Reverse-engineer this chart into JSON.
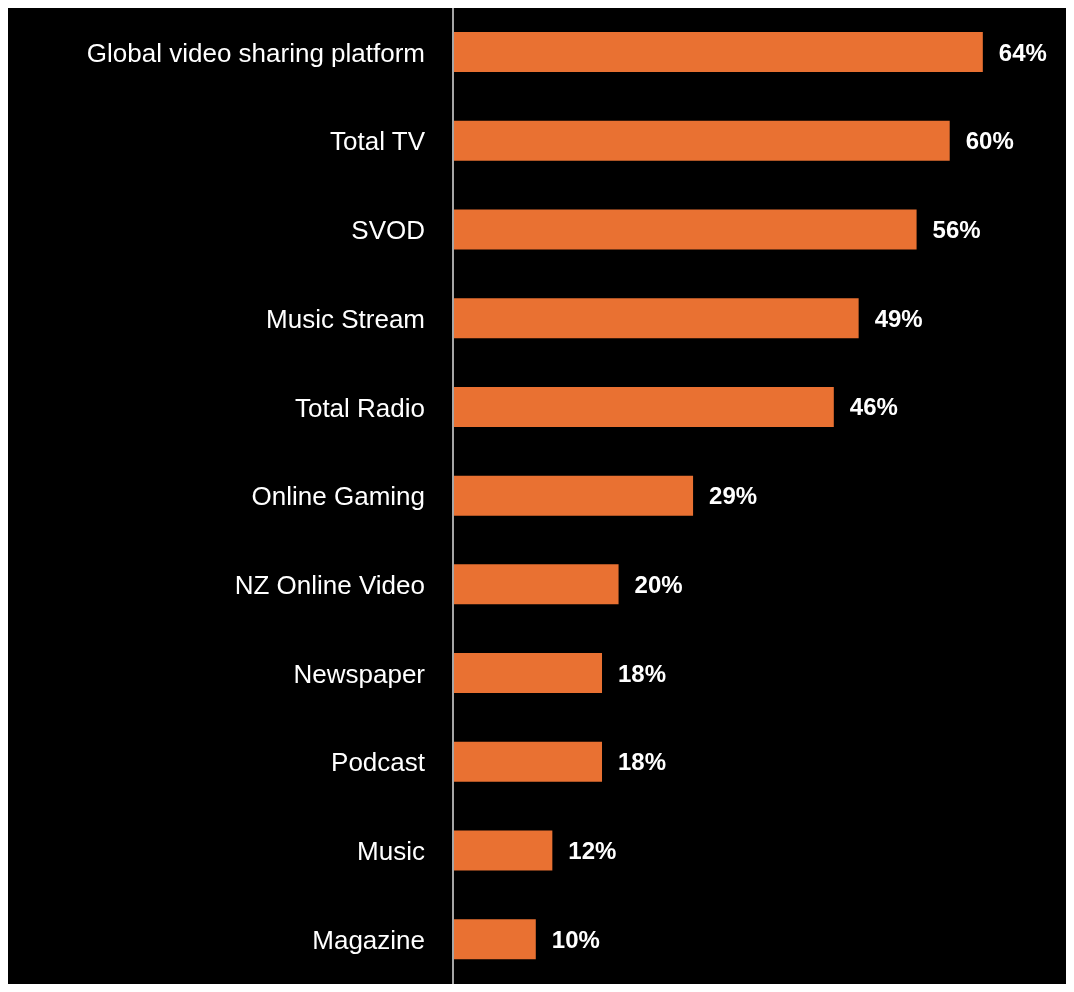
{
  "chart_data": {
    "type": "bar",
    "orientation": "horizontal",
    "categories": [
      "Global video sharing platform",
      "Total TV",
      "SVOD",
      "Music Stream",
      "Total Radio",
      "Online Gaming",
      "NZ Online Video",
      "Newspaper",
      "Podcast",
      "Music",
      "Magazine"
    ],
    "values": [
      64,
      60,
      56,
      49,
      46,
      29,
      20,
      18,
      18,
      12,
      10
    ],
    "value_labels": [
      "64%",
      "60%",
      "56%",
      "49%",
      "46%",
      "29%",
      "20%",
      "18%",
      "18%",
      "12%",
      "10%"
    ],
    "color": "#e97132"
  }
}
